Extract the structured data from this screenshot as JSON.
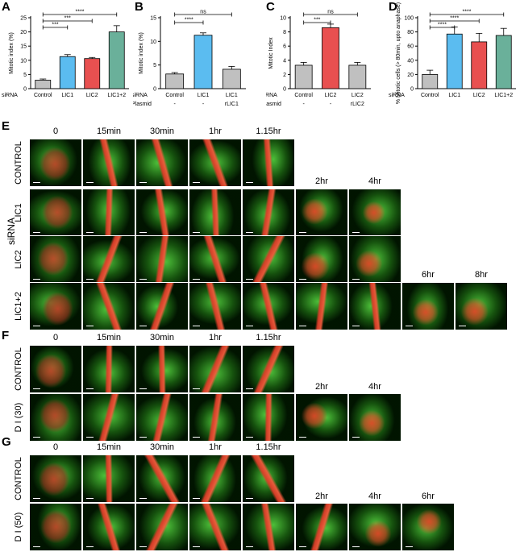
{
  "panel_labels": [
    "A",
    "B",
    "C",
    "D",
    "E",
    "F",
    "G"
  ],
  "chart_data": [
    {
      "id": "A",
      "type": "bar",
      "ylabel": "Mitotic index (%)",
      "ylim": [
        0,
        25
      ],
      "yticks": [
        0,
        5,
        10,
        15,
        20,
        25
      ],
      "categories": [
        "Control",
        "LIC1",
        "LIC2",
        "LIC1+2"
      ],
      "values": [
        3,
        11.3,
        10.6,
        20
      ],
      "errors": [
        0.4,
        0.7,
        0.4,
        2.2
      ],
      "colors": [
        "#c0c0c0",
        "#5bbcf0",
        "#e85050",
        "#6ab09a"
      ],
      "row_label": "siRNA",
      "significance": [
        {
          "from": 0,
          "to": 1,
          "label": "***"
        },
        {
          "from": 0,
          "to": 2,
          "label": "***"
        },
        {
          "from": 0,
          "to": 3,
          "label": "****"
        }
      ]
    },
    {
      "id": "B",
      "type": "bar",
      "ylabel": "Mitotic index (%)",
      "ylim": [
        0,
        15
      ],
      "yticks": [
        0,
        5,
        10,
        15
      ],
      "categories": [
        "Control",
        "LIC1",
        "LIC1"
      ],
      "values": [
        3.1,
        11.3,
        4.1
      ],
      "errors": [
        0.3,
        0.5,
        0.6
      ],
      "colors": [
        "#c0c0c0",
        "#5bbcf0",
        "#c0c0c0"
      ],
      "row_label": "siRNA",
      "row2_label": "Plasmid",
      "row2": [
        "-",
        "-",
        "rLIC1"
      ],
      "significance": [
        {
          "from": 0,
          "to": 1,
          "label": "****"
        },
        {
          "from": 0,
          "to": 2,
          "label": "ns"
        }
      ]
    },
    {
      "id": "C",
      "type": "bar",
      "ylabel": "Mitotic Index",
      "ylim": [
        0,
        10
      ],
      "yticks": [
        0,
        2,
        4,
        6,
        8,
        10
      ],
      "categories": [
        "Control",
        "LIC2",
        "LIC2"
      ],
      "values": [
        3.3,
        8.6,
        3.3
      ],
      "errors": [
        0.4,
        0.5,
        0.4
      ],
      "colors": [
        "#c0c0c0",
        "#e85050",
        "#c0c0c0"
      ],
      "row_label": "siRNA",
      "row2_label": "Plasmid",
      "row2": [
        "-",
        "-",
        "rLIC2"
      ],
      "significance": [
        {
          "from": 0,
          "to": 1,
          "label": "***"
        },
        {
          "from": 0,
          "to": 2,
          "label": "ns"
        }
      ]
    },
    {
      "id": "D",
      "type": "bar",
      "ylabel": "% Mitotic cells (> 80min, upto anaphase)",
      "ylim": [
        0,
        100
      ],
      "yticks": [
        0,
        20,
        40,
        60,
        80,
        100
      ],
      "categories": [
        "Control",
        "LIC1",
        "LIC2",
        "LIC1+2"
      ],
      "values": [
        20,
        77,
        66,
        75
      ],
      "errors": [
        6,
        10,
        12,
        10
      ],
      "colors": [
        "#c0c0c0",
        "#5bbcf0",
        "#e85050",
        "#6ab09a"
      ],
      "row_label": "siRNA",
      "significance": [
        {
          "from": 0,
          "to": 1,
          "label": "****"
        },
        {
          "from": 0,
          "to": 2,
          "label": "****"
        },
        {
          "from": 0,
          "to": 3,
          "label": "****"
        }
      ]
    }
  ],
  "panel_E": {
    "side_label": "siRNA",
    "time_row1": [
      "0",
      "15min",
      "30min",
      "1hr",
      "1.15hr"
    ],
    "time_row2": [
      "2hr",
      "4hr"
    ],
    "time_row3": [
      "6hr",
      "8hr"
    ],
    "rows": [
      {
        "label": "CONTROL",
        "count": 5
      },
      {
        "label": "LIC1",
        "count": 7
      },
      {
        "label": "LIC2",
        "count": 7
      },
      {
        "label": "LIC1+2",
        "count": 9
      }
    ]
  },
  "panel_F": {
    "time_row1": [
      "0",
      "15min",
      "30min",
      "1hr",
      "1.15hr"
    ],
    "time_row2": [
      "2hr",
      "4hr"
    ],
    "rows": [
      {
        "label": "CONTROL",
        "count": 5
      },
      {
        "label": "D I (30)",
        "count": 7
      }
    ]
  },
  "panel_G": {
    "time_row1": [
      "0",
      "15min",
      "30min",
      "1hr",
      "1.15hr"
    ],
    "time_row2": [
      "2hr",
      "4hr",
      "6hr"
    ],
    "rows": [
      {
        "label": "CONTROL",
        "count": 5
      },
      {
        "label": "D I (50)",
        "count": 8
      }
    ]
  }
}
